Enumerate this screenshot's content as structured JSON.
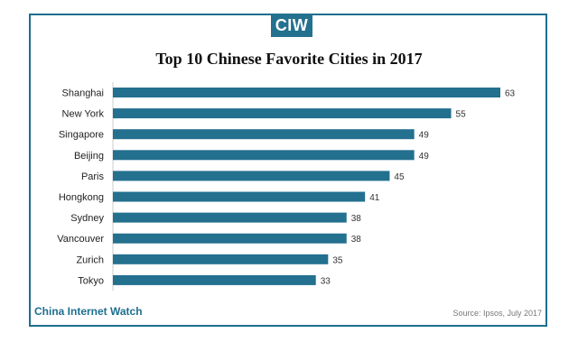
{
  "logo": {
    "text": "CIW"
  },
  "footer": {
    "brand": "China Internet Watch",
    "source": "Source: Ipsos, July 2017"
  },
  "colors": {
    "bar": "#23708f",
    "frame": "#1d6f8f",
    "brand": "#1d6f8f"
  },
  "chart_data": {
    "type": "bar",
    "orientation": "horizontal",
    "title": "Top 10 Chinese Favorite Cities in 2017",
    "categories": [
      "Shanghai",
      "New York",
      "Singapore",
      "Beijing",
      "Paris",
      "Hongkong",
      "Sydney",
      "Vancouver",
      "Zurich",
      "Tokyo"
    ],
    "values": [
      63,
      55,
      49,
      49,
      45,
      41,
      38,
      38,
      35,
      33
    ],
    "xlabel": "",
    "ylabel": "",
    "xlim": [
      0,
      63
    ],
    "grid": false,
    "legend": "none",
    "data_labels": true
  }
}
